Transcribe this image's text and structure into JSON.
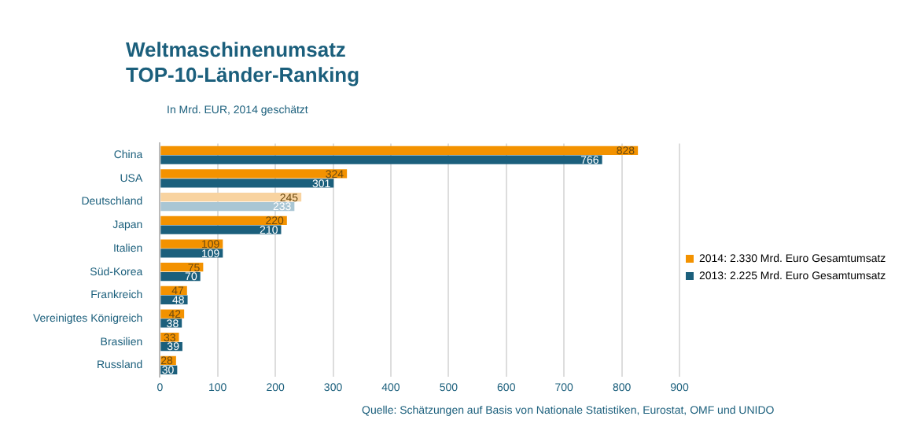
{
  "chart_data": {
    "type": "bar",
    "orientation": "horizontal",
    "title": "Weltmaschinenumsatz",
    "subtitle": "TOP-10-Länder-Ranking",
    "annotations": [
      "In Mrd. EUR, 2014 geschätzt",
      "Quelle: Schätzungen auf Basis von Nationale Statistiken, Eurostat, OMF und UNIDO"
    ],
    "categories": [
      "China",
      "USA",
      "Deutschland",
      "Japan",
      "Italien",
      "Süd-Korea",
      "Frankreich",
      "Vereinigtes Königreich",
      "Brasilien",
      "Russland"
    ],
    "series": [
      {
        "name": "2014: 2.330 Mrd. Euro Gesamtumsatz",
        "color": "#f39200",
        "colors": [
          "#f39200",
          "#f39200",
          "#f8d3a0",
          "#f39200",
          "#f39200",
          "#f39200",
          "#f39200",
          "#f39200",
          "#f39200",
          "#f39200"
        ],
        "values": [
          828,
          324,
          245,
          220,
          109,
          75,
          47,
          42,
          33,
          28
        ]
      },
      {
        "name": "2013: 2.225 Mrd. Euro Gesamtumsatz",
        "color": "#1b5f7c",
        "colors": [
          "#1b5f7c",
          "#1b5f7c",
          "#a9c6d4",
          "#1b5f7c",
          "#1b5f7c",
          "#1b5f7c",
          "#1b5f7c",
          "#1b5f7c",
          "#1b5f7c",
          "#1b5f7c"
        ],
        "values": [
          766,
          301,
          233,
          210,
          109,
          70,
          48,
          38,
          39,
          30
        ]
      }
    ],
    "xlim": [
      0,
      900
    ],
    "xticks": [
      0,
      100,
      200,
      300,
      400,
      500,
      600,
      700,
      800,
      900
    ],
    "grid": "x",
    "legend": "right",
    "data_labels": true
  }
}
